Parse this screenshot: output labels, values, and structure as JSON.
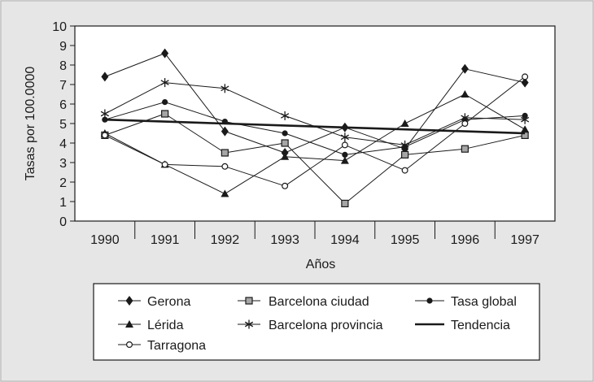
{
  "chart_data": {
    "type": "line",
    "title": "",
    "xlabel": "Años",
    "ylabel": "Tasas por 100.0000",
    "x": [
      1990,
      1991,
      1992,
      1993,
      1994,
      1995,
      1996,
      1997
    ],
    "ylim": [
      0,
      10
    ],
    "yticks": [
      0,
      1,
      2,
      3,
      4,
      5,
      6,
      7,
      8,
      9,
      10
    ],
    "grid": false,
    "legend_position": "bottom",
    "series": [
      {
        "name": "Gerona",
        "marker": "diamond",
        "values": [
          7.4,
          8.6,
          4.6,
          3.5,
          4.8,
          3.7,
          7.8,
          7.1
        ]
      },
      {
        "name": "Barcelona ciudad",
        "marker": "square",
        "values": [
          4.4,
          5.5,
          3.5,
          4.0,
          0.9,
          3.4,
          3.7,
          4.4
        ]
      },
      {
        "name": "Tasa global",
        "marker": "circle-filled",
        "values": [
          5.2,
          6.1,
          5.1,
          4.5,
          3.4,
          3.8,
          5.2,
          5.4
        ]
      },
      {
        "name": "Lérida",
        "marker": "triangle",
        "values": [
          4.5,
          2.9,
          1.4,
          3.3,
          3.1,
          5.0,
          6.5,
          4.7
        ]
      },
      {
        "name": "Barcelona provincia",
        "marker": "asterisk",
        "values": [
          5.5,
          7.1,
          6.8,
          5.4,
          4.3,
          3.9,
          5.3,
          5.2
        ]
      },
      {
        "name": "Tendencia",
        "marker": "none",
        "line": "thick",
        "values": [
          5.2,
          5.1,
          5.0,
          4.9,
          4.8,
          4.7,
          4.6,
          4.5
        ]
      },
      {
        "name": "Tarragona",
        "marker": "circle-open",
        "values": [
          4.4,
          2.9,
          2.8,
          1.8,
          3.9,
          2.6,
          5.0,
          7.4
        ]
      }
    ],
    "colors": {
      "background": "#e6e6e6",
      "plot": "#ffffff",
      "ink": "#1a1a1a",
      "square_fill": "#a6a6a6"
    }
  }
}
